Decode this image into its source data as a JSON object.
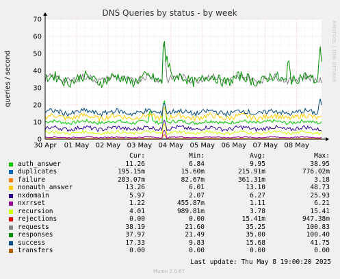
{
  "chart_data": {
    "type": "line",
    "title": "DNS Queries by status - by week",
    "ylabel": "queries / second",
    "watermark": "RRDTOOL / TOBI OETIKER",
    "ylim": [
      0,
      70
    ],
    "y_ticks": [
      "0",
      "10",
      "20",
      "30",
      "40",
      "50",
      "60",
      "70"
    ],
    "x_ticks": [
      "30 Apr",
      "01 May",
      "02 May",
      "03 May",
      "04 May",
      "05 May",
      "06 May",
      "07 May",
      "08 May"
    ],
    "grid": true,
    "series": [
      {
        "name": "auth_answer",
        "color": "#00cc00",
        "level": 10.0,
        "noise": 1.0,
        "spikes": [
          [
            0.43,
            25.0
          ],
          [
            0.38,
            18.0
          ]
        ]
      },
      {
        "name": "duplicates",
        "color": "#0066b3",
        "level": 0.2,
        "noise": 0.05,
        "spikes": []
      },
      {
        "name": "failure",
        "color": "#ff8000",
        "level": 0.3,
        "noise": 0.1,
        "spikes": [
          [
            0.43,
            3.0
          ]
        ]
      },
      {
        "name": "nonauth_answer",
        "color": "#ffcc00",
        "level": 13.0,
        "noise": 1.5,
        "spikes": [
          [
            0.43,
            20.0
          ]
        ]
      },
      {
        "name": "nxdomain",
        "color": "#330099",
        "level": 6.3,
        "noise": 1.2,
        "spikes": [
          [
            0.43,
            12.0
          ]
        ]
      },
      {
        "name": "nxrrset",
        "color": "#990099",
        "level": 1.1,
        "noise": 0.3,
        "spikes": [
          [
            0.43,
            6.0
          ]
        ]
      },
      {
        "name": "recursion",
        "color": "#ccff00",
        "level": 3.8,
        "noise": 0.8,
        "spikes": [
          [
            0.43,
            10.0
          ]
        ]
      },
      {
        "name": "rejections",
        "color": "#ff0000",
        "level": 0.0,
        "noise": 0.0,
        "spikes": []
      },
      {
        "name": "requests",
        "color": "#808080",
        "level": 35.3,
        "noise": 2.0,
        "spikes": [
          [
            0.43,
            60.0
          ]
        ]
      },
      {
        "name": "responses",
        "color": "#008f00",
        "level": 35.0,
        "noise": 3.0,
        "spikes": [
          [
            0.43,
            62.0
          ],
          [
            0.44,
            50.0
          ],
          [
            0.45,
            44.0
          ],
          [
            0.88,
            48.0
          ],
          [
            0.995,
            55.0
          ]
        ]
      },
      {
        "name": "success",
        "color": "#00487d",
        "level": 15.7,
        "noise": 1.5,
        "spikes": [
          [
            0.43,
            22.0
          ],
          [
            0.995,
            24.0
          ]
        ]
      },
      {
        "name": "transfers",
        "color": "#b35a00",
        "level": 0.0,
        "noise": 0.0,
        "spikes": []
      }
    ]
  },
  "legend": {
    "headers": {
      "cur": "Cur:",
      "min": "Min:",
      "avg": "Avg:",
      "max": "Max:"
    },
    "rows": [
      {
        "name": "auth_answer",
        "color": "#00cc00",
        "cur": "11.26",
        "min": "6.84",
        "avg": "9.95",
        "max": "38.95"
      },
      {
        "name": "duplicates",
        "color": "#0066b3",
        "cur": "195.15m",
        "min": "15.60m",
        "avg": "215.91m",
        "max": "776.02m"
      },
      {
        "name": "failure",
        "color": "#ff8000",
        "cur": "283.07m",
        "min": "82.67m",
        "avg": "361.31m",
        "max": "3.18"
      },
      {
        "name": "nonauth_answer",
        "color": "#ffcc00",
        "cur": "13.26",
        "min": "6.01",
        "avg": "13.10",
        "max": "48.73"
      },
      {
        "name": "nxdomain",
        "color": "#330099",
        "cur": "5.97",
        "min": "2.07",
        "avg": "6.27",
        "max": "25.93"
      },
      {
        "name": "nxrrset",
        "color": "#990099",
        "cur": "1.22",
        "min": "455.87m",
        "avg": "1.11",
        "max": "6.21"
      },
      {
        "name": "recursion",
        "color": "#ccff00",
        "cur": "4.01",
        "min": "989.81m",
        "avg": "3.78",
        "max": "15.41"
      },
      {
        "name": "rejections",
        "color": "#ff0000",
        "cur": "0.00",
        "min": "0.00",
        "avg": "15.41m",
        "max": "947.38m"
      },
      {
        "name": "requests",
        "color": "#808080",
        "cur": "38.19",
        "min": "21.60",
        "avg": "35.25",
        "max": "100.83"
      },
      {
        "name": "responses",
        "color": "#008f00",
        "cur": "37.97",
        "min": "21.49",
        "avg": "35.00",
        "max": "100.40"
      },
      {
        "name": "success",
        "color": "#00487d",
        "cur": "17.33",
        "min": "9.83",
        "avg": "15.68",
        "max": "41.75"
      },
      {
        "name": "transfers",
        "color": "#b35a00",
        "cur": "0.00",
        "min": "0.00",
        "avg": "0.00",
        "max": "0.00"
      }
    ]
  },
  "footer": {
    "last_update": "Last update: Thu May  8 19:00:20 2025",
    "version": "Munin 2.0.67"
  }
}
